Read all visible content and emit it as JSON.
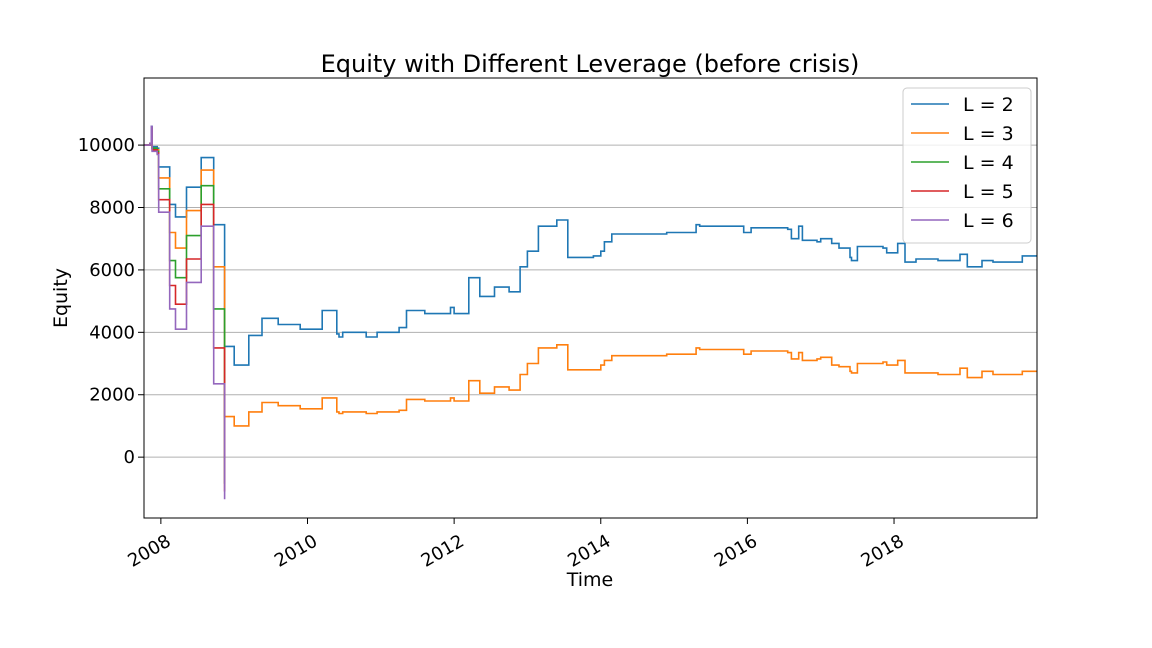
{
  "chart_data": {
    "type": "line",
    "title": "Equity with Different Leverage (before crisis)",
    "xlabel": "Time",
    "ylabel": "Equity",
    "xlim": [
      2007.77,
      2019.95
    ],
    "ylim": [
      -1950,
      12150
    ],
    "grid": "y",
    "legend_position": "top-right",
    "x_ticks": [
      {
        "value": 2008,
        "label": "2008"
      },
      {
        "value": 2010,
        "label": "2010"
      },
      {
        "value": 2012,
        "label": "2012"
      },
      {
        "value": 2014,
        "label": "2014"
      },
      {
        "value": 2016,
        "label": "2016"
      },
      {
        "value": 2018,
        "label": "2018"
      }
    ],
    "y_ticks": [
      {
        "value": 0,
        "label": "0"
      },
      {
        "value": 2000,
        "label": "2000"
      },
      {
        "value": 4000,
        "label": "4000"
      },
      {
        "value": 6000,
        "label": "6000"
      },
      {
        "value": 8000,
        "label": "8000"
      },
      {
        "value": 10000,
        "label": "10000"
      }
    ],
    "series": [
      {
        "name": "L = 2",
        "color": "#1f77b4",
        "step": true,
        "points": [
          [
            2007.77,
            10000
          ],
          [
            2007.85,
            10050
          ],
          [
            2007.87,
            10600
          ],
          [
            2007.88,
            9950
          ],
          [
            2007.95,
            9900
          ],
          [
            2007.97,
            9300
          ],
          [
            2008.12,
            8100
          ],
          [
            2008.2,
            7700
          ],
          [
            2008.35,
            8650
          ],
          [
            2008.55,
            9600
          ],
          [
            2008.72,
            7450
          ],
          [
            2008.87,
            3550
          ],
          [
            2009.0,
            2950
          ],
          [
            2009.2,
            3900
          ],
          [
            2009.38,
            4450
          ],
          [
            2009.6,
            4250
          ],
          [
            2009.9,
            4100
          ],
          [
            2010.2,
            4700
          ],
          [
            2010.4,
            3950
          ],
          [
            2010.43,
            3850
          ],
          [
            2010.48,
            4000
          ],
          [
            2010.8,
            3850
          ],
          [
            2010.95,
            4000
          ],
          [
            2011.25,
            4150
          ],
          [
            2011.35,
            4700
          ],
          [
            2011.6,
            4600
          ],
          [
            2011.95,
            4800
          ],
          [
            2012.0,
            4600
          ],
          [
            2012.2,
            5750
          ],
          [
            2012.35,
            5150
          ],
          [
            2012.55,
            5450
          ],
          [
            2012.75,
            5300
          ],
          [
            2012.9,
            6100
          ],
          [
            2013.0,
            6600
          ],
          [
            2013.15,
            7400
          ],
          [
            2013.4,
            7600
          ],
          [
            2013.55,
            6400
          ],
          [
            2013.9,
            6450
          ],
          [
            2014.0,
            6600
          ],
          [
            2014.05,
            6900
          ],
          [
            2014.15,
            7150
          ],
          [
            2014.9,
            7200
          ],
          [
            2015.3,
            7450
          ],
          [
            2015.35,
            7400
          ],
          [
            2015.95,
            7200
          ],
          [
            2016.05,
            7350
          ],
          [
            2016.55,
            7300
          ],
          [
            2016.6,
            7000
          ],
          [
            2016.7,
            7400
          ],
          [
            2016.75,
            6950
          ],
          [
            2016.95,
            6900
          ],
          [
            2017.0,
            7000
          ],
          [
            2017.15,
            6850
          ],
          [
            2017.25,
            6700
          ],
          [
            2017.4,
            6400
          ],
          [
            2017.42,
            6300
          ],
          [
            2017.5,
            6750
          ],
          [
            2017.85,
            6700
          ],
          [
            2017.9,
            6550
          ],
          [
            2018.05,
            6850
          ],
          [
            2018.15,
            6250
          ],
          [
            2018.3,
            6350
          ],
          [
            2018.6,
            6300
          ],
          [
            2018.9,
            6500
          ],
          [
            2019.0,
            6100
          ],
          [
            2019.2,
            6300
          ],
          [
            2019.35,
            6250
          ],
          [
            2019.75,
            6450
          ],
          [
            2019.95,
            6450
          ]
        ]
      },
      {
        "name": "L = 3",
        "color": "#ff7f0e",
        "step": true,
        "points": [
          [
            2007.77,
            10000
          ],
          [
            2007.85,
            10050
          ],
          [
            2007.87,
            10500
          ],
          [
            2007.88,
            9900
          ],
          [
            2007.95,
            9850
          ],
          [
            2007.97,
            8950
          ],
          [
            2008.12,
            7200
          ],
          [
            2008.2,
            6700
          ],
          [
            2008.35,
            7900
          ],
          [
            2008.55,
            9200
          ],
          [
            2008.72,
            6100
          ],
          [
            2008.87,
            1300
          ],
          [
            2009.0,
            1000
          ],
          [
            2009.2,
            1450
          ],
          [
            2009.38,
            1750
          ],
          [
            2009.6,
            1650
          ],
          [
            2009.9,
            1550
          ],
          [
            2010.2,
            1900
          ],
          [
            2010.4,
            1450
          ],
          [
            2010.43,
            1400
          ],
          [
            2010.48,
            1450
          ],
          [
            2010.8,
            1400
          ],
          [
            2010.95,
            1450
          ],
          [
            2011.25,
            1500
          ],
          [
            2011.35,
            1850
          ],
          [
            2011.6,
            1800
          ],
          [
            2011.95,
            1900
          ],
          [
            2012.0,
            1800
          ],
          [
            2012.2,
            2450
          ],
          [
            2012.35,
            2050
          ],
          [
            2012.55,
            2250
          ],
          [
            2012.75,
            2150
          ],
          [
            2012.9,
            2650
          ],
          [
            2013.0,
            3000
          ],
          [
            2013.15,
            3500
          ],
          [
            2013.4,
            3600
          ],
          [
            2013.55,
            2800
          ],
          [
            2013.9,
            2800
          ],
          [
            2014.0,
            2950
          ],
          [
            2014.05,
            3100
          ],
          [
            2014.15,
            3250
          ],
          [
            2014.9,
            3300
          ],
          [
            2015.3,
            3500
          ],
          [
            2015.35,
            3450
          ],
          [
            2015.95,
            3300
          ],
          [
            2016.05,
            3400
          ],
          [
            2016.55,
            3350
          ],
          [
            2016.6,
            3150
          ],
          [
            2016.7,
            3350
          ],
          [
            2016.75,
            3100
          ],
          [
            2016.95,
            3150
          ],
          [
            2017.0,
            3200
          ],
          [
            2017.15,
            2950
          ],
          [
            2017.25,
            2900
          ],
          [
            2017.4,
            2750
          ],
          [
            2017.42,
            2700
          ],
          [
            2017.5,
            3000
          ],
          [
            2017.85,
            3050
          ],
          [
            2017.9,
            2950
          ],
          [
            2018.05,
            3100
          ],
          [
            2018.15,
            2700
          ],
          [
            2018.3,
            2700
          ],
          [
            2018.6,
            2650
          ],
          [
            2018.9,
            2850
          ],
          [
            2019.0,
            2550
          ],
          [
            2019.2,
            2750
          ],
          [
            2019.35,
            2650
          ],
          [
            2019.75,
            2750
          ],
          [
            2019.95,
            2750
          ]
        ]
      },
      {
        "name": "L = 4",
        "color": "#2ca02c",
        "step": true,
        "points": [
          [
            2007.77,
            10000
          ],
          [
            2007.85,
            10050
          ],
          [
            2007.87,
            10550
          ],
          [
            2007.88,
            9900
          ],
          [
            2007.95,
            9800
          ],
          [
            2007.97,
            8600
          ],
          [
            2008.12,
            6300
          ],
          [
            2008.2,
            5750
          ],
          [
            2008.35,
            7100
          ],
          [
            2008.55,
            8700
          ],
          [
            2008.72,
            4750
          ],
          [
            2008.87,
            -850
          ]
        ]
      },
      {
        "name": "L = 5",
        "color": "#d62728",
        "step": true,
        "points": [
          [
            2007.77,
            10000
          ],
          [
            2007.85,
            10050
          ],
          [
            2007.87,
            10550
          ],
          [
            2007.88,
            9850
          ],
          [
            2007.95,
            9750
          ],
          [
            2007.97,
            8250
          ],
          [
            2008.12,
            5500
          ],
          [
            2008.2,
            4900
          ],
          [
            2008.35,
            6350
          ],
          [
            2008.55,
            8100
          ],
          [
            2008.72,
            3500
          ],
          [
            2008.87,
            -1100
          ]
        ]
      },
      {
        "name": "L = 6",
        "color": "#9467bd",
        "step": true,
        "points": [
          [
            2007.77,
            10000
          ],
          [
            2007.85,
            10050
          ],
          [
            2007.87,
            10600
          ],
          [
            2007.88,
            9800
          ],
          [
            2007.95,
            9700
          ],
          [
            2007.97,
            7850
          ],
          [
            2008.12,
            4750
          ],
          [
            2008.2,
            4100
          ],
          [
            2008.35,
            5600
          ],
          [
            2008.55,
            7400
          ],
          [
            2008.72,
            2350
          ],
          [
            2008.87,
            -1350
          ]
        ]
      }
    ]
  }
}
